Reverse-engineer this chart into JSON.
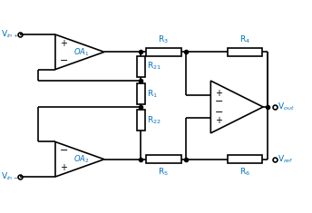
{
  "bg_color": "#ffffff",
  "line_color": "#000000",
  "label_color": "#0070c0",
  "fig_width": 3.44,
  "fig_height": 2.35,
  "dpi": 100,
  "labels": {
    "Vin_plus": "V$_{in+}$",
    "Vin_minus": "V$_{in-}$",
    "Vout": "V$_{out}$",
    "Vref": "V$_{ref}$",
    "OA1": "OA$_1$",
    "OA2": "OA$_2$",
    "R1": "R$_1$",
    "R21": "R$_{21}$",
    "R22": "R$_{22}$",
    "R3": "R$_3$",
    "R4": "R$_4$",
    "R5": "R$_5$",
    "R6": "R$_6$"
  }
}
